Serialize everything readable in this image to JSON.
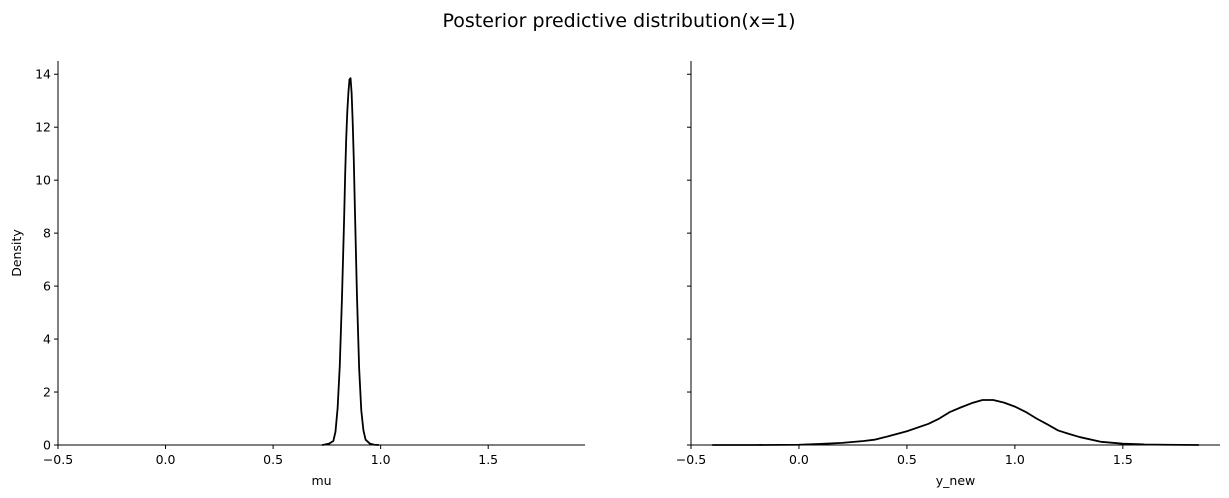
{
  "chart_data": {
    "type": "line",
    "title": "Posterior predictive distribution(x=1)",
    "sharey": true,
    "line_color": "#000000",
    "panels": [
      {
        "xlabel": "mu",
        "ylabel": "Density",
        "xlim": [
          -0.5,
          1.95
        ],
        "ylim": [
          0,
          14.5
        ],
        "xticks": [
          -0.5,
          0.0,
          0.5,
          1.0,
          1.5
        ],
        "xtick_labels": [
          "−0.5",
          "0.0",
          "0.5",
          "1.0",
          "1.5"
        ],
        "yticks": [
          0,
          2,
          4,
          6,
          8,
          10,
          12,
          14
        ],
        "ytick_labels": [
          "0",
          "2",
          "4",
          "6",
          "8",
          "10",
          "12",
          "14"
        ],
        "series": [
          {
            "x": [
              0.73,
              0.76,
              0.78,
              0.79,
              0.8,
              0.81,
              0.82,
              0.83,
              0.835,
              0.84,
              0.845,
              0.85,
              0.855,
              0.86,
              0.865,
              0.87,
              0.875,
              0.88,
              0.89,
              0.9,
              0.91,
              0.92,
              0.93,
              0.95,
              0.97,
              0.99
            ],
            "y": [
              0.0,
              0.05,
              0.15,
              0.5,
              1.4,
              3.0,
              5.5,
              8.5,
              10.2,
              11.6,
              12.6,
              13.3,
              13.8,
              13.85,
              13.3,
              12.2,
              10.8,
              9.0,
              5.6,
              2.9,
              1.3,
              0.55,
              0.2,
              0.05,
              0.01,
              0.0
            ]
          }
        ]
      },
      {
        "xlabel": "y_new",
        "ylabel": "",
        "xlim": [
          -0.5,
          1.95
        ],
        "ylim": [
          0,
          14.5
        ],
        "xticks": [
          -0.5,
          0.0,
          0.5,
          1.0,
          1.5
        ],
        "xtick_labels": [
          "−0.5",
          "0.0",
          "0.5",
          "1.0",
          "1.5"
        ],
        "yticks": [
          0,
          2,
          4,
          6,
          8,
          10,
          12,
          14
        ],
        "ytick_labels": [
          "",
          "",
          "",
          "",
          "",
          "",
          "",
          ""
        ],
        "series": [
          {
            "x": [
              -0.4,
              -0.2,
              0.0,
              0.1,
              0.2,
              0.3,
              0.35,
              0.4,
              0.5,
              0.6,
              0.65,
              0.7,
              0.75,
              0.8,
              0.85,
              0.9,
              0.95,
              1.0,
              1.05,
              1.1,
              1.15,
              1.2,
              1.25,
              1.3,
              1.4,
              1.5,
              1.6,
              1.7,
              1.85
            ],
            "y": [
              0.0,
              0.0,
              0.01,
              0.04,
              0.08,
              0.15,
              0.2,
              0.3,
              0.52,
              0.8,
              1.0,
              1.25,
              1.42,
              1.58,
              1.7,
              1.7,
              1.6,
              1.45,
              1.25,
              1.0,
              0.78,
              0.55,
              0.42,
              0.3,
              0.12,
              0.05,
              0.02,
              0.01,
              0.0
            ]
          }
        ]
      }
    ]
  }
}
